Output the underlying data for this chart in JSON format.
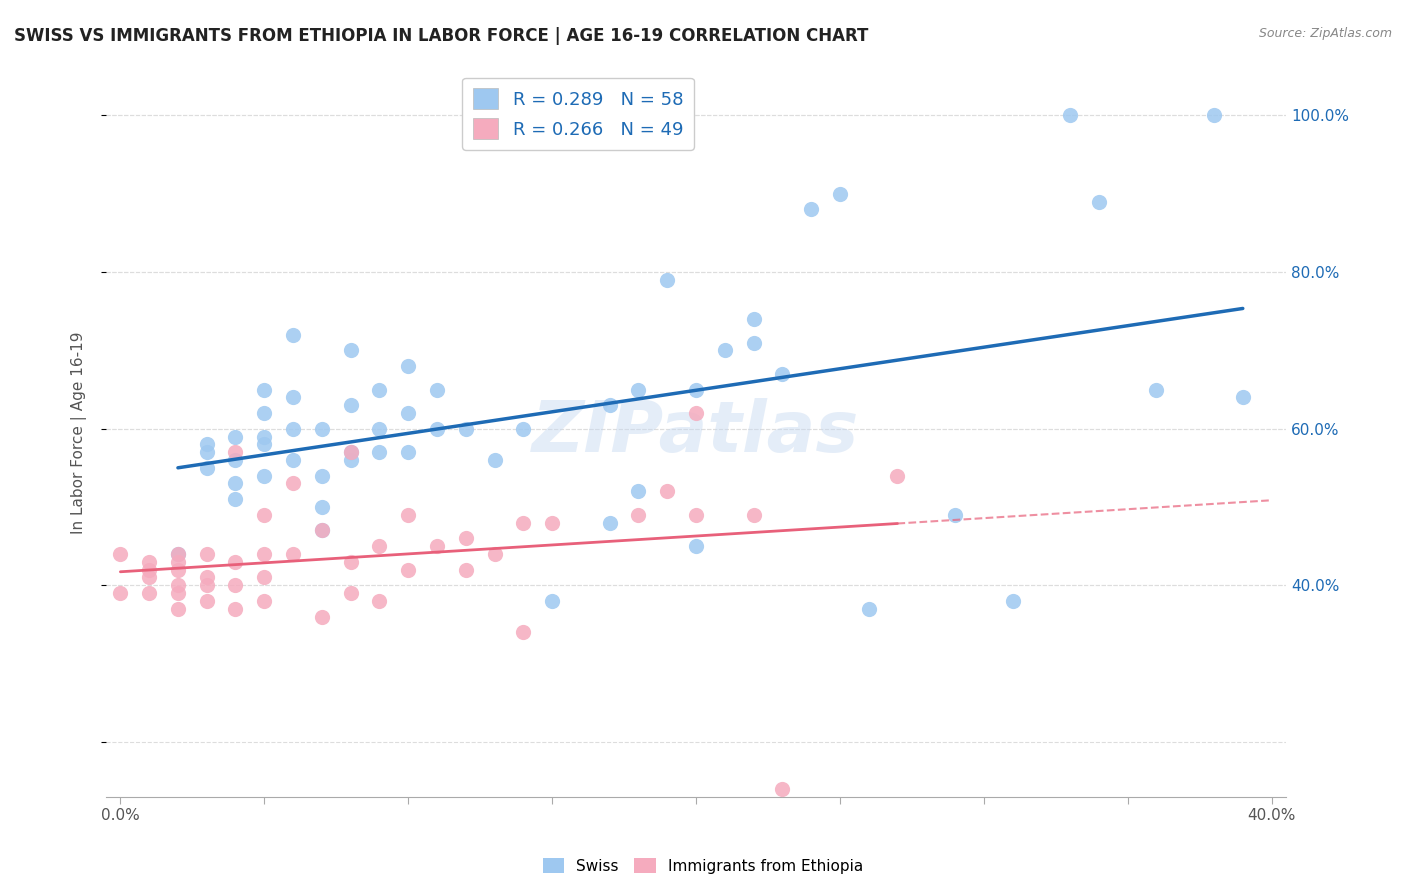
{
  "title": "SWISS VS IMMIGRANTS FROM ETHIOPIA IN LABOR FORCE | AGE 16-19 CORRELATION CHART",
  "source": "Source: ZipAtlas.com",
  "ylabel": "In Labor Force | Age 16-19",
  "watermark": "ZIPatlas",
  "swiss_R": 0.289,
  "swiss_N": 58,
  "eth_R": 0.266,
  "eth_N": 49,
  "xlim": [
    -0.005,
    0.405
  ],
  "ylim": [
    0.13,
    1.06
  ],
  "right_ytick_values": [
    0.4,
    0.6,
    0.8,
    1.0
  ],
  "right_ytick_labels": [
    "40.0%",
    "60.0%",
    "80.0%",
    "100.0%"
  ],
  "xtick_values": [
    0.0,
    0.05,
    0.1,
    0.15,
    0.2,
    0.25,
    0.3,
    0.35,
    0.4
  ],
  "xtick_labels": [
    "0.0%",
    "",
    "",
    "",
    "",
    "",
    "",
    "",
    "40.0%"
  ],
  "swiss_color": "#9EC8F0",
  "eth_color": "#F5ABBE",
  "swiss_line_color": "#1E6BB5",
  "eth_line_color": "#E8607A",
  "background_color": "#FFFFFF",
  "grid_color": "#DDDDDD",
  "swiss_x": [
    0.02,
    0.03,
    0.03,
    0.03,
    0.04,
    0.04,
    0.04,
    0.04,
    0.05,
    0.05,
    0.05,
    0.05,
    0.05,
    0.06,
    0.06,
    0.06,
    0.06,
    0.07,
    0.07,
    0.07,
    0.07,
    0.08,
    0.08,
    0.08,
    0.08,
    0.09,
    0.09,
    0.09,
    0.1,
    0.1,
    0.1,
    0.11,
    0.11,
    0.12,
    0.13,
    0.14,
    0.15,
    0.17,
    0.17,
    0.18,
    0.18,
    0.19,
    0.2,
    0.2,
    0.21,
    0.22,
    0.22,
    0.23,
    0.24,
    0.25,
    0.26,
    0.29,
    0.31,
    0.33,
    0.34,
    0.36,
    0.38,
    0.39
  ],
  "swiss_y": [
    0.44,
    0.57,
    0.55,
    0.58,
    0.51,
    0.53,
    0.56,
    0.59,
    0.54,
    0.58,
    0.59,
    0.62,
    0.65,
    0.56,
    0.6,
    0.64,
    0.72,
    0.47,
    0.5,
    0.54,
    0.6,
    0.56,
    0.57,
    0.63,
    0.7,
    0.57,
    0.6,
    0.65,
    0.57,
    0.62,
    0.68,
    0.6,
    0.65,
    0.6,
    0.56,
    0.6,
    0.38,
    0.48,
    0.63,
    0.52,
    0.65,
    0.79,
    0.45,
    0.65,
    0.7,
    0.71,
    0.74,
    0.67,
    0.88,
    0.9,
    0.37,
    0.49,
    0.38,
    1.0,
    0.89,
    0.65,
    1.0,
    0.64
  ],
  "eth_x": [
    0.0,
    0.0,
    0.01,
    0.01,
    0.01,
    0.01,
    0.02,
    0.02,
    0.02,
    0.02,
    0.02,
    0.02,
    0.03,
    0.03,
    0.03,
    0.03,
    0.04,
    0.04,
    0.04,
    0.04,
    0.05,
    0.05,
    0.05,
    0.05,
    0.06,
    0.06,
    0.07,
    0.07,
    0.08,
    0.08,
    0.08,
    0.09,
    0.09,
    0.1,
    0.1,
    0.11,
    0.12,
    0.12,
    0.13,
    0.14,
    0.14,
    0.15,
    0.18,
    0.19,
    0.2,
    0.2,
    0.22,
    0.23,
    0.27
  ],
  "eth_y": [
    0.39,
    0.44,
    0.39,
    0.41,
    0.42,
    0.43,
    0.37,
    0.39,
    0.4,
    0.42,
    0.43,
    0.44,
    0.38,
    0.4,
    0.41,
    0.44,
    0.37,
    0.4,
    0.43,
    0.57,
    0.38,
    0.41,
    0.44,
    0.49,
    0.44,
    0.53,
    0.36,
    0.47,
    0.39,
    0.43,
    0.57,
    0.38,
    0.45,
    0.42,
    0.49,
    0.45,
    0.42,
    0.46,
    0.44,
    0.34,
    0.48,
    0.48,
    0.49,
    0.52,
    0.49,
    0.62,
    0.49,
    0.14,
    0.54
  ],
  "legend_R_color": "#1E6BB5",
  "legend_text_color": "#333333"
}
